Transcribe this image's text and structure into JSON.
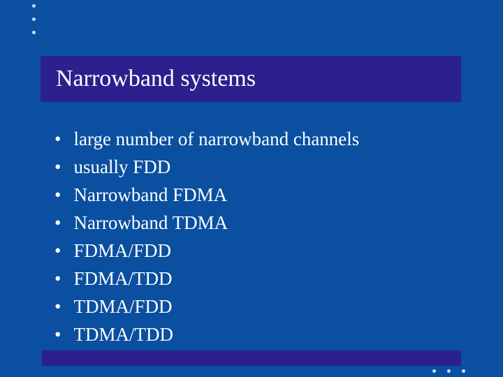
{
  "slide": {
    "background_color": "#0a4fa0",
    "title_bar_color": "#2c1f8e",
    "title_text_color": "#ffffff",
    "bullet_text_color": "#ffffff",
    "decorative_dot_color": "#c9d9f0",
    "bottom_bar_color": "#2c1f8e",
    "title": "Narrowband systems",
    "title_fontsize": 34,
    "bullet_fontsize": 27,
    "bullets": [
      "large number of narrowband channels",
      "usually FDD",
      "Narrowband FDMA",
      "Narrowband TDMA",
      "FDMA/FDD",
      "FDMA/TDD",
      "TDMA/FDD",
      "TDMA/TDD"
    ]
  }
}
